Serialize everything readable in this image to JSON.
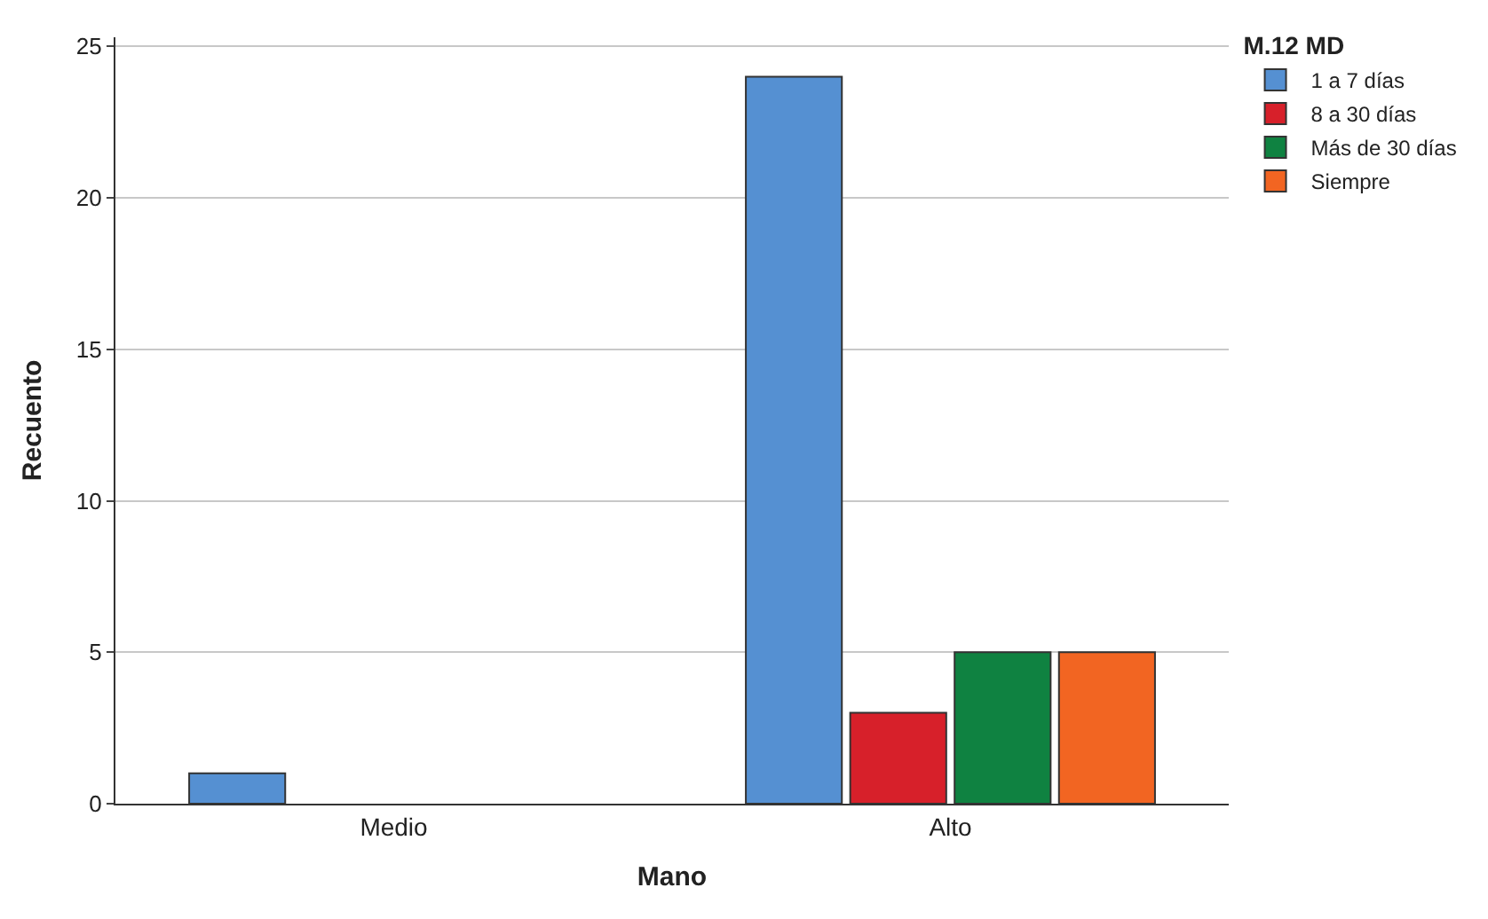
{
  "chart_data": {
    "type": "bar",
    "xlabel": "Mano",
    "ylabel": "Recuento",
    "legend_title": "M.12 MD",
    "categories": [
      "Medio",
      "Alto"
    ],
    "series": [
      {
        "name": "1 a 7 días",
        "color": "#5590d2",
        "values": [
          1,
          24
        ]
      },
      {
        "name": "8 a 30 días",
        "color": "#d7202a",
        "values": [
          null,
          3
        ]
      },
      {
        "name": "Más de 30 días",
        "color": "#0f8241",
        "values": [
          null,
          5
        ]
      },
      {
        "name": "Siempre",
        "color": "#f26522",
        "values": [
          null,
          5
        ]
      }
    ],
    "ylim": [
      0,
      25.3
    ],
    "yticks": [
      0,
      5,
      10,
      15,
      20,
      25
    ],
    "grid": "y",
    "legend": "top right"
  }
}
